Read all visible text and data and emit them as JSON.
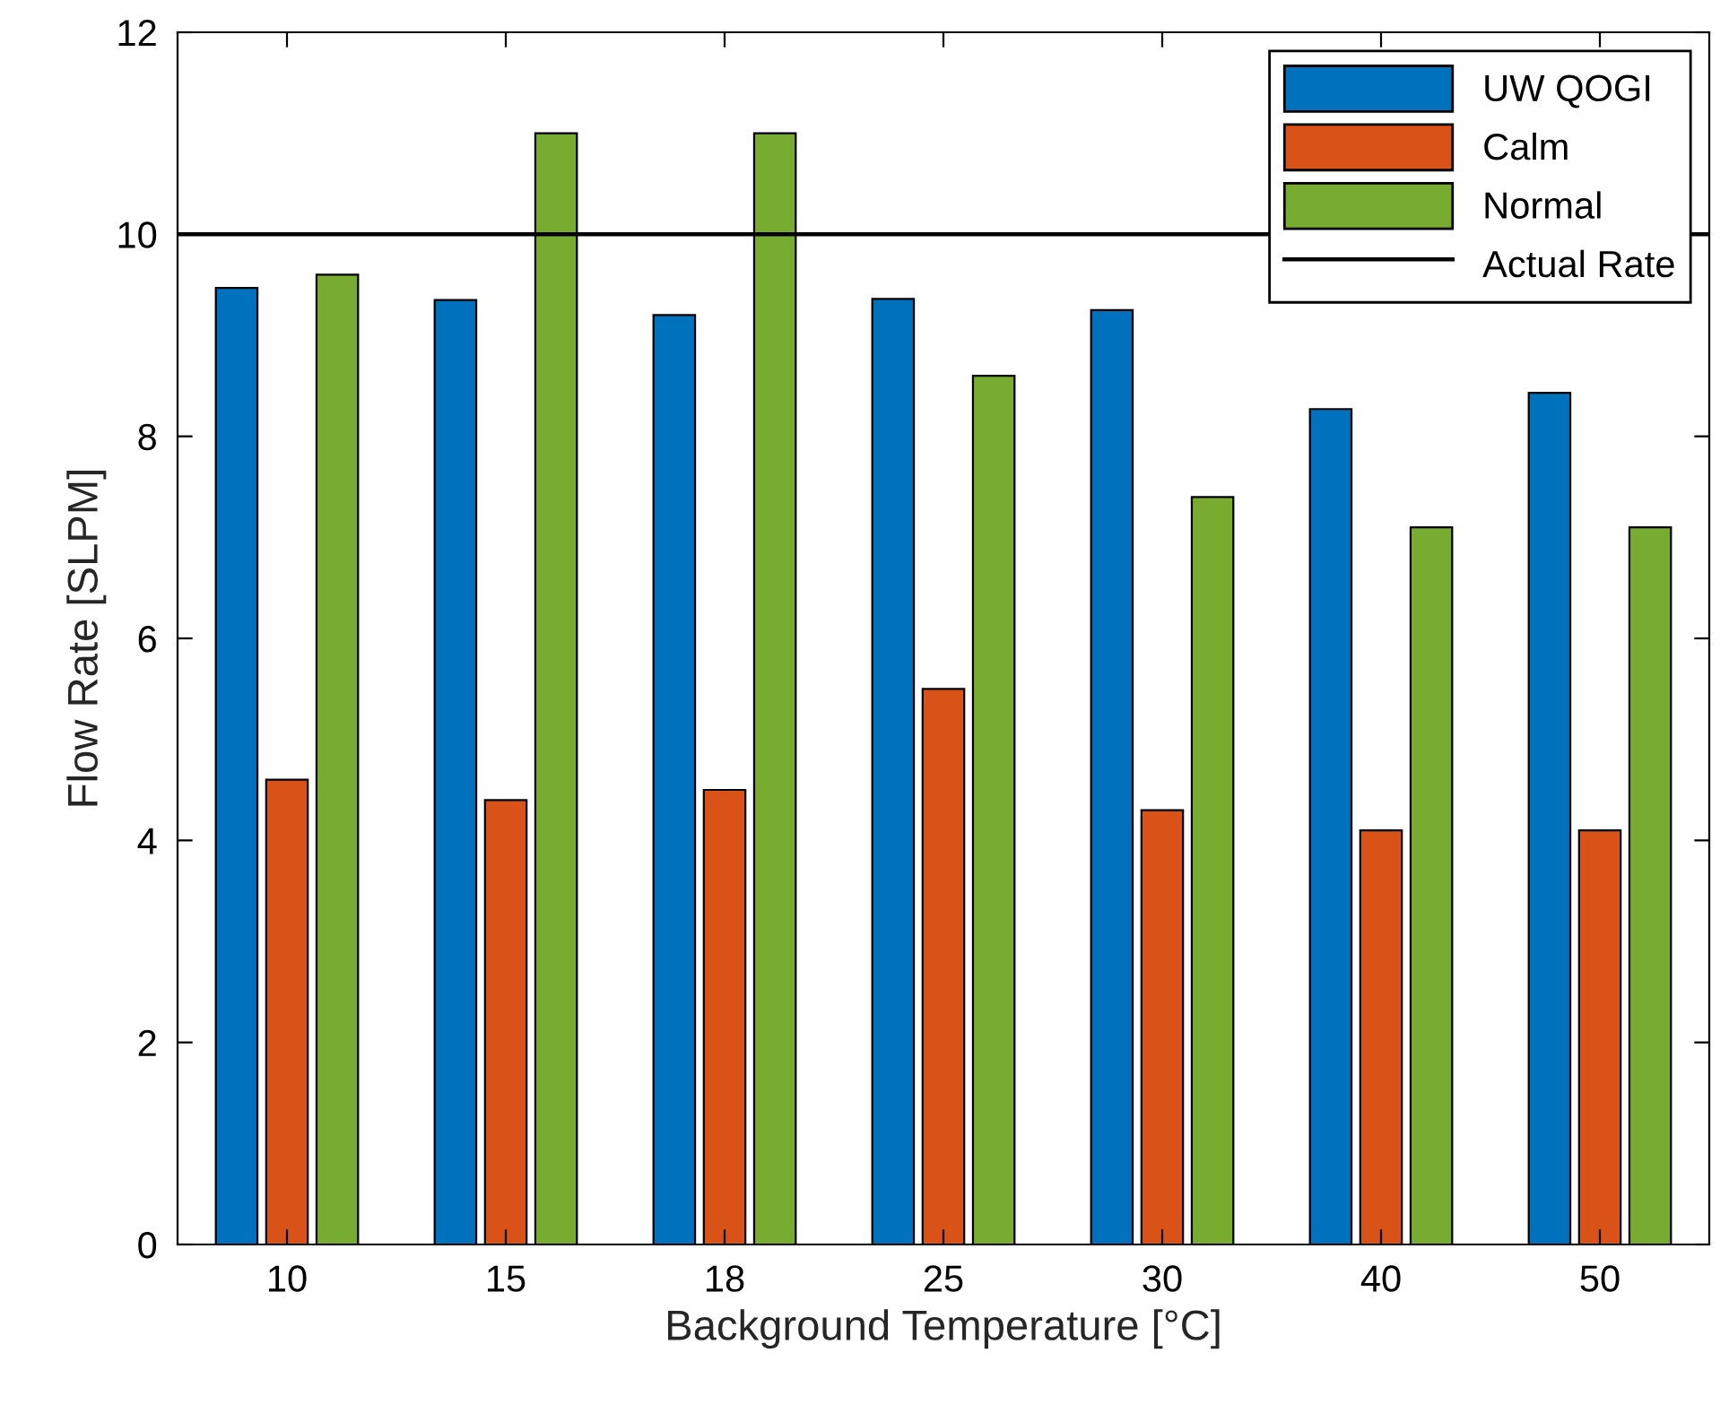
{
  "chart_data": {
    "type": "bar",
    "xlabel": "Background Temperature [°C]",
    "ylabel": "Flow Rate [SLPM]",
    "categories": [
      "10",
      "15",
      "18",
      "25",
      "30",
      "40",
      "50"
    ],
    "series": [
      {
        "name": "UW QOGI",
        "color": "#0072bd",
        "values": [
          9.47,
          9.35,
          9.2,
          9.36,
          9.25,
          8.27,
          8.43
        ]
      },
      {
        "name": "Calm",
        "color": "#d95319",
        "values": [
          4.6,
          4.4,
          4.5,
          5.5,
          4.3,
          4.1,
          4.1
        ]
      },
      {
        "name": "Normal",
        "color": "#77ac30",
        "values": [
          9.6,
          11,
          11,
          8.6,
          7.4,
          7.1,
          7.1
        ]
      }
    ],
    "ref_lines": [
      {
        "axis": "y",
        "value": 10,
        "label": "Actual Rate",
        "color": "#000000",
        "line_style": "solid"
      }
    ],
    "ylim": [
      0,
      12
    ],
    "yticks": [
      0,
      2,
      4,
      6,
      8,
      10,
      12
    ],
    "grid": false,
    "legend": "top right"
  }
}
